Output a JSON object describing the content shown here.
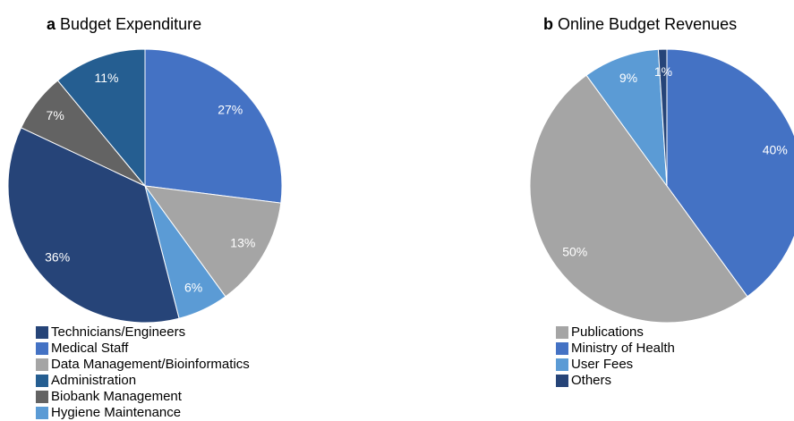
{
  "chart_data": [
    {
      "type": "pie",
      "panel": "a",
      "title": "Budget Expenditure",
      "categories": [
        "Medical Staff",
        "Data Management/Bioinformatics",
        "Hygiene Maintenance",
        "Technicians/Engineers",
        "Biobank Management",
        "Administration"
      ],
      "values": [
        27,
        13,
        6,
        36,
        7,
        11
      ],
      "value_labels": [
        "27%",
        "13%",
        "6%",
        "36%",
        "7%",
        "11%"
      ],
      "colors": [
        "#4472c4",
        "#a5a5a5",
        "#5b9bd5",
        "#264478",
        "#636363",
        "#255e91"
      ],
      "legend_order": [
        3,
        0,
        1,
        5,
        4,
        2
      ]
    },
    {
      "type": "pie",
      "panel": "b",
      "title": "Online Budget Revenues",
      "categories": [
        "Ministry of Health",
        "Publications",
        "User Fees",
        "Others"
      ],
      "values": [
        40,
        50,
        9,
        1
      ],
      "value_labels": [
        "40%",
        "50%",
        "9%",
        "1%"
      ],
      "colors": [
        "#4472c4",
        "#a5a5a5",
        "#5b9bd5",
        "#264478"
      ],
      "legend_order": [
        1,
        0,
        2,
        3
      ]
    }
  ]
}
